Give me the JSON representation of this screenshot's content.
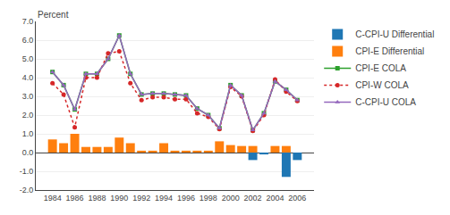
{
  "chart_data": {
    "type": "bar",
    "ylabel": "Percent",
    "x": [
      1984,
      1985,
      1986,
      1987,
      1988,
      1989,
      1990,
      1991,
      1992,
      1993,
      1994,
      1995,
      1996,
      1997,
      1998,
      1999,
      2000,
      2001,
      2002,
      2003,
      2004,
      2005,
      2006
    ],
    "series": [
      {
        "name": "C-CPI-U Differential",
        "type": "bar",
        "values": [
          0.0,
          0.0,
          0.0,
          0.0,
          0.0,
          0.0,
          0.0,
          0.0,
          0.0,
          0.0,
          0.0,
          0.0,
          0.0,
          0.0,
          0.0,
          0.0,
          0.0,
          0.0,
          -0.4,
          -0.1,
          0.0,
          -1.3,
          -0.4
        ]
      },
      {
        "name": "CPI-E Differential",
        "type": "bar",
        "values": [
          0.7,
          0.5,
          1.0,
          0.3,
          0.3,
          0.3,
          0.8,
          0.5,
          0.1,
          0.1,
          0.5,
          0.1,
          0.1,
          0.1,
          0.1,
          0.6,
          0.4,
          0.35,
          0.35,
          0.0,
          0.35,
          0.35,
          0.0
        ]
      },
      {
        "name": "CPI-E COLA",
        "type": "line",
        "marker": "square",
        "line_style": "solid",
        "values": [
          4.3,
          3.6,
          2.3,
          4.2,
          4.2,
          5.0,
          6.25,
          4.2,
          3.1,
          3.15,
          3.15,
          3.1,
          3.05,
          2.35,
          2.0,
          1.3,
          3.6,
          3.05,
          1.2,
          2.1,
          3.8,
          3.35,
          2.8
        ]
      },
      {
        "name": "CPI-W COLA",
        "type": "line",
        "marker": "circle",
        "line_style": "dotted",
        "values": [
          3.7,
          3.1,
          1.35,
          4.0,
          4.0,
          5.3,
          5.4,
          3.7,
          2.8,
          2.95,
          2.95,
          2.85,
          2.85,
          2.1,
          1.9,
          1.25,
          3.5,
          3.0,
          1.15,
          2.0,
          3.9,
          3.25,
          2.75
        ]
      },
      {
        "name": "C-CPI-U COLA",
        "type": "line",
        "marker": "triangle-up",
        "line_style": "solid",
        "values": [
          4.3,
          3.6,
          2.3,
          4.2,
          4.2,
          5.0,
          6.25,
          4.2,
          3.1,
          3.15,
          3.15,
          3.1,
          3.05,
          2.35,
          2.0,
          1.3,
          3.6,
          3.05,
          1.2,
          2.1,
          3.8,
          3.35,
          2.8
        ]
      }
    ],
    "xlim": [
      1982.5,
      2007.5
    ],
    "xticks": [
      1984,
      1986,
      1988,
      1990,
      1992,
      1994,
      1996,
      1998,
      2000,
      2002,
      2004,
      2006
    ],
    "ylim": [
      -2.0,
      7.0
    ],
    "yticks": [
      {
        "value": -2.0,
        "label": "-2.0"
      },
      {
        "value": -1.0,
        "label": "-1.0"
      },
      {
        "value": 0.0,
        "label": "0.0"
      },
      {
        "value": 1.0,
        "label": "1.0"
      },
      {
        "value": 2.0,
        "label": "2.0"
      },
      {
        "value": 3.0,
        "label": "3.0"
      },
      {
        "value": 4.0,
        "label": "4.0"
      },
      {
        "value": 5.0,
        "label": "5.0"
      },
      {
        "value": 6.0,
        "label": "6.0"
      },
      {
        "value": 7.0,
        "label": "7.0"
      }
    ],
    "grid": true,
    "legend": "right"
  }
}
